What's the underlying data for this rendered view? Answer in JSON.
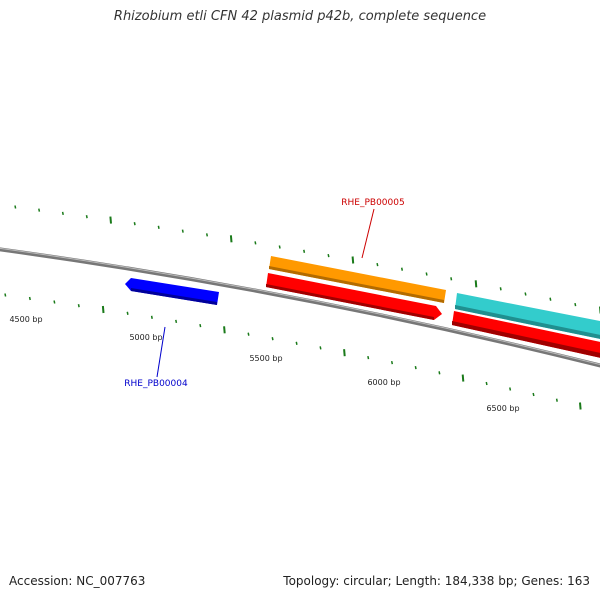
{
  "title": "Rhizobium etli CFN 42 plasmid p42b, complete sequence",
  "footer": {
    "accession": "Accession: NC_007763",
    "summary": "Topology: circular; Length: 184,338 bp; Genes: 163"
  },
  "scale": {
    "ticks": [
      {
        "label": "4500 bp"
      },
      {
        "label": "5000 bp"
      },
      {
        "label": "5500 bp"
      },
      {
        "label": "6000 bp"
      },
      {
        "label": "6500 bp"
      }
    ]
  },
  "genes": [
    {
      "label": "RHE_PB00005",
      "color": "#cc0000"
    },
    {
      "label": "RHE_PB00004",
      "color": "#0000cc"
    }
  ],
  "colors": {
    "backbone": "#888888",
    "tick": "#1a7a1a",
    "orange": "#ff9900",
    "red": "#ff0000",
    "blue": "#0000ff",
    "cyan": "#33cccc"
  }
}
